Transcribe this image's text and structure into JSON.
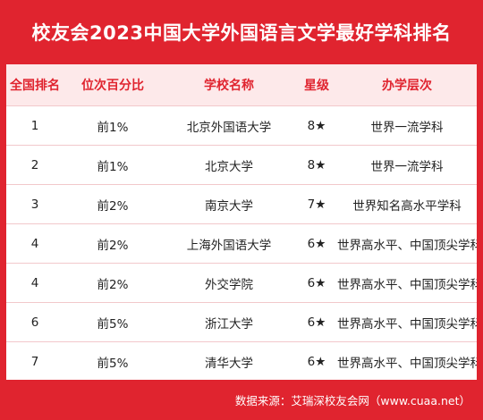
{
  "title": "校友会2023中国大学外国语言文学最好学科排名",
  "table": {
    "headers": [
      "全国排名",
      "位次百分比",
      "学校名称",
      "星级",
      "办学层次"
    ],
    "rows": [
      [
        "1",
        "前1%",
        "北京外国语大学",
        "8★",
        "世界一流学科"
      ],
      [
        "2",
        "前1%",
        "北京大学",
        "8★",
        "世界一流学科"
      ],
      [
        "3",
        "前2%",
        "南京大学",
        "7★",
        "世界知名高水平学科"
      ],
      [
        "4",
        "前2%",
        "上海外国语大学",
        "6★",
        "世界高水平、中国顶尖学科"
      ],
      [
        "4",
        "前2%",
        "外交学院",
        "6★",
        "世界高水平、中国顶尖学科"
      ],
      [
        "6",
        "前5%",
        "浙江大学",
        "6★",
        "世界高水平、中国顶尖学科"
      ],
      [
        "7",
        "前5%",
        "清华大学",
        "6★",
        "世界高水平、中国顶尖学科"
      ]
    ]
  },
  "footer": "数据来源：艾瑞深校友会网（www.cuaa.net）",
  "colors": {
    "background": "#e0242f",
    "header_bg": "#fde9ea",
    "header_text": "#e0242f",
    "row_divider": "#f2c8cb"
  }
}
